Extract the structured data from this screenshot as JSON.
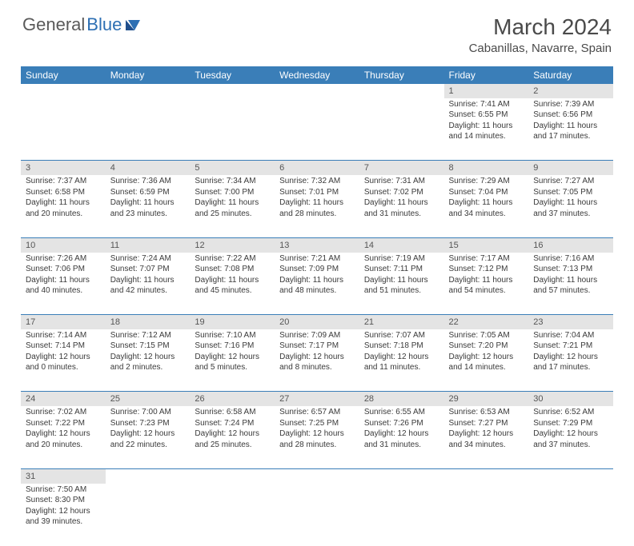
{
  "logo": {
    "general": "General",
    "blue": "Blue"
  },
  "title": "March 2024",
  "location": "Cabanillas, Navarre, Spain",
  "colors": {
    "header_bg": "#3a7eb8",
    "header_text": "#ffffff",
    "daynum_bg": "#e4e4e4",
    "rule": "#3a7eb8",
    "body_text": "#3a3a3a",
    "title_text": "#4a4a4a",
    "logo_gray": "#5a5a5a",
    "logo_blue": "#2d6fb3"
  },
  "day_headers": [
    "Sunday",
    "Monday",
    "Tuesday",
    "Wednesday",
    "Thursday",
    "Friday",
    "Saturday"
  ],
  "weeks": [
    {
      "nums": [
        "",
        "",
        "",
        "",
        "",
        "1",
        "2"
      ],
      "cells": [
        null,
        null,
        null,
        null,
        null,
        {
          "sunrise": "Sunrise: 7:41 AM",
          "sunset": "Sunset: 6:55 PM",
          "day1": "Daylight: 11 hours",
          "day2": "and 14 minutes."
        },
        {
          "sunrise": "Sunrise: 7:39 AM",
          "sunset": "Sunset: 6:56 PM",
          "day1": "Daylight: 11 hours",
          "day2": "and 17 minutes."
        }
      ]
    },
    {
      "nums": [
        "3",
        "4",
        "5",
        "6",
        "7",
        "8",
        "9"
      ],
      "cells": [
        {
          "sunrise": "Sunrise: 7:37 AM",
          "sunset": "Sunset: 6:58 PM",
          "day1": "Daylight: 11 hours",
          "day2": "and 20 minutes."
        },
        {
          "sunrise": "Sunrise: 7:36 AM",
          "sunset": "Sunset: 6:59 PM",
          "day1": "Daylight: 11 hours",
          "day2": "and 23 minutes."
        },
        {
          "sunrise": "Sunrise: 7:34 AM",
          "sunset": "Sunset: 7:00 PM",
          "day1": "Daylight: 11 hours",
          "day2": "and 25 minutes."
        },
        {
          "sunrise": "Sunrise: 7:32 AM",
          "sunset": "Sunset: 7:01 PM",
          "day1": "Daylight: 11 hours",
          "day2": "and 28 minutes."
        },
        {
          "sunrise": "Sunrise: 7:31 AM",
          "sunset": "Sunset: 7:02 PM",
          "day1": "Daylight: 11 hours",
          "day2": "and 31 minutes."
        },
        {
          "sunrise": "Sunrise: 7:29 AM",
          "sunset": "Sunset: 7:04 PM",
          "day1": "Daylight: 11 hours",
          "day2": "and 34 minutes."
        },
        {
          "sunrise": "Sunrise: 7:27 AM",
          "sunset": "Sunset: 7:05 PM",
          "day1": "Daylight: 11 hours",
          "day2": "and 37 minutes."
        }
      ]
    },
    {
      "nums": [
        "10",
        "11",
        "12",
        "13",
        "14",
        "15",
        "16"
      ],
      "cells": [
        {
          "sunrise": "Sunrise: 7:26 AM",
          "sunset": "Sunset: 7:06 PM",
          "day1": "Daylight: 11 hours",
          "day2": "and 40 minutes."
        },
        {
          "sunrise": "Sunrise: 7:24 AM",
          "sunset": "Sunset: 7:07 PM",
          "day1": "Daylight: 11 hours",
          "day2": "and 42 minutes."
        },
        {
          "sunrise": "Sunrise: 7:22 AM",
          "sunset": "Sunset: 7:08 PM",
          "day1": "Daylight: 11 hours",
          "day2": "and 45 minutes."
        },
        {
          "sunrise": "Sunrise: 7:21 AM",
          "sunset": "Sunset: 7:09 PM",
          "day1": "Daylight: 11 hours",
          "day2": "and 48 minutes."
        },
        {
          "sunrise": "Sunrise: 7:19 AM",
          "sunset": "Sunset: 7:11 PM",
          "day1": "Daylight: 11 hours",
          "day2": "and 51 minutes."
        },
        {
          "sunrise": "Sunrise: 7:17 AM",
          "sunset": "Sunset: 7:12 PM",
          "day1": "Daylight: 11 hours",
          "day2": "and 54 minutes."
        },
        {
          "sunrise": "Sunrise: 7:16 AM",
          "sunset": "Sunset: 7:13 PM",
          "day1": "Daylight: 11 hours",
          "day2": "and 57 minutes."
        }
      ]
    },
    {
      "nums": [
        "17",
        "18",
        "19",
        "20",
        "21",
        "22",
        "23"
      ],
      "cells": [
        {
          "sunrise": "Sunrise: 7:14 AM",
          "sunset": "Sunset: 7:14 PM",
          "day1": "Daylight: 12 hours",
          "day2": "and 0 minutes."
        },
        {
          "sunrise": "Sunrise: 7:12 AM",
          "sunset": "Sunset: 7:15 PM",
          "day1": "Daylight: 12 hours",
          "day2": "and 2 minutes."
        },
        {
          "sunrise": "Sunrise: 7:10 AM",
          "sunset": "Sunset: 7:16 PM",
          "day1": "Daylight: 12 hours",
          "day2": "and 5 minutes."
        },
        {
          "sunrise": "Sunrise: 7:09 AM",
          "sunset": "Sunset: 7:17 PM",
          "day1": "Daylight: 12 hours",
          "day2": "and 8 minutes."
        },
        {
          "sunrise": "Sunrise: 7:07 AM",
          "sunset": "Sunset: 7:18 PM",
          "day1": "Daylight: 12 hours",
          "day2": "and 11 minutes."
        },
        {
          "sunrise": "Sunrise: 7:05 AM",
          "sunset": "Sunset: 7:20 PM",
          "day1": "Daylight: 12 hours",
          "day2": "and 14 minutes."
        },
        {
          "sunrise": "Sunrise: 7:04 AM",
          "sunset": "Sunset: 7:21 PM",
          "day1": "Daylight: 12 hours",
          "day2": "and 17 minutes."
        }
      ]
    },
    {
      "nums": [
        "24",
        "25",
        "26",
        "27",
        "28",
        "29",
        "30"
      ],
      "cells": [
        {
          "sunrise": "Sunrise: 7:02 AM",
          "sunset": "Sunset: 7:22 PM",
          "day1": "Daylight: 12 hours",
          "day2": "and 20 minutes."
        },
        {
          "sunrise": "Sunrise: 7:00 AM",
          "sunset": "Sunset: 7:23 PM",
          "day1": "Daylight: 12 hours",
          "day2": "and 22 minutes."
        },
        {
          "sunrise": "Sunrise: 6:58 AM",
          "sunset": "Sunset: 7:24 PM",
          "day1": "Daylight: 12 hours",
          "day2": "and 25 minutes."
        },
        {
          "sunrise": "Sunrise: 6:57 AM",
          "sunset": "Sunset: 7:25 PM",
          "day1": "Daylight: 12 hours",
          "day2": "and 28 minutes."
        },
        {
          "sunrise": "Sunrise: 6:55 AM",
          "sunset": "Sunset: 7:26 PM",
          "day1": "Daylight: 12 hours",
          "day2": "and 31 minutes."
        },
        {
          "sunrise": "Sunrise: 6:53 AM",
          "sunset": "Sunset: 7:27 PM",
          "day1": "Daylight: 12 hours",
          "day2": "and 34 minutes."
        },
        {
          "sunrise": "Sunrise: 6:52 AM",
          "sunset": "Sunset: 7:29 PM",
          "day1": "Daylight: 12 hours",
          "day2": "and 37 minutes."
        }
      ]
    },
    {
      "nums": [
        "31",
        "",
        "",
        "",
        "",
        "",
        ""
      ],
      "cells": [
        {
          "sunrise": "Sunrise: 7:50 AM",
          "sunset": "Sunset: 8:30 PM",
          "day1": "Daylight: 12 hours",
          "day2": "and 39 minutes."
        },
        null,
        null,
        null,
        null,
        null,
        null
      ]
    }
  ]
}
